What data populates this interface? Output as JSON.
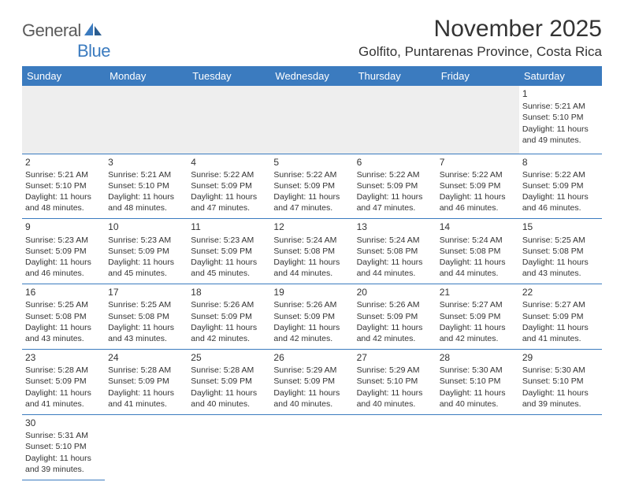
{
  "logo": {
    "text_part1": "General",
    "text_part2": "Blue",
    "text_color": "#5b5b5b",
    "accent_color": "#3b7bbf"
  },
  "header": {
    "month_title": "November 2025",
    "location": "Golfito, Puntarenas Province, Costa Rica"
  },
  "colors": {
    "header_bg": "#3b7bbf",
    "header_text": "#ffffff",
    "cell_border": "#3b7bbf",
    "blank_bg": "#eeeeee",
    "body_text": "#333333"
  },
  "days_of_week": [
    "Sunday",
    "Monday",
    "Tuesday",
    "Wednesday",
    "Thursday",
    "Friday",
    "Saturday"
  ],
  "weeks": [
    [
      {
        "blank": true
      },
      {
        "blank": true
      },
      {
        "blank": true
      },
      {
        "blank": true
      },
      {
        "blank": true
      },
      {
        "blank": true
      },
      {
        "day": "1",
        "sunrise": "Sunrise: 5:21 AM",
        "sunset": "Sunset: 5:10 PM",
        "daylight": "Daylight: 11 hours and 49 minutes."
      }
    ],
    [
      {
        "day": "2",
        "sunrise": "Sunrise: 5:21 AM",
        "sunset": "Sunset: 5:10 PM",
        "daylight": "Daylight: 11 hours and 48 minutes."
      },
      {
        "day": "3",
        "sunrise": "Sunrise: 5:21 AM",
        "sunset": "Sunset: 5:10 PM",
        "daylight": "Daylight: 11 hours and 48 minutes."
      },
      {
        "day": "4",
        "sunrise": "Sunrise: 5:22 AM",
        "sunset": "Sunset: 5:09 PM",
        "daylight": "Daylight: 11 hours and 47 minutes."
      },
      {
        "day": "5",
        "sunrise": "Sunrise: 5:22 AM",
        "sunset": "Sunset: 5:09 PM",
        "daylight": "Daylight: 11 hours and 47 minutes."
      },
      {
        "day": "6",
        "sunrise": "Sunrise: 5:22 AM",
        "sunset": "Sunset: 5:09 PM",
        "daylight": "Daylight: 11 hours and 47 minutes."
      },
      {
        "day": "7",
        "sunrise": "Sunrise: 5:22 AM",
        "sunset": "Sunset: 5:09 PM",
        "daylight": "Daylight: 11 hours and 46 minutes."
      },
      {
        "day": "8",
        "sunrise": "Sunrise: 5:22 AM",
        "sunset": "Sunset: 5:09 PM",
        "daylight": "Daylight: 11 hours and 46 minutes."
      }
    ],
    [
      {
        "day": "9",
        "sunrise": "Sunrise: 5:23 AM",
        "sunset": "Sunset: 5:09 PM",
        "daylight": "Daylight: 11 hours and 46 minutes."
      },
      {
        "day": "10",
        "sunrise": "Sunrise: 5:23 AM",
        "sunset": "Sunset: 5:09 PM",
        "daylight": "Daylight: 11 hours and 45 minutes."
      },
      {
        "day": "11",
        "sunrise": "Sunrise: 5:23 AM",
        "sunset": "Sunset: 5:09 PM",
        "daylight": "Daylight: 11 hours and 45 minutes."
      },
      {
        "day": "12",
        "sunrise": "Sunrise: 5:24 AM",
        "sunset": "Sunset: 5:08 PM",
        "daylight": "Daylight: 11 hours and 44 minutes."
      },
      {
        "day": "13",
        "sunrise": "Sunrise: 5:24 AM",
        "sunset": "Sunset: 5:08 PM",
        "daylight": "Daylight: 11 hours and 44 minutes."
      },
      {
        "day": "14",
        "sunrise": "Sunrise: 5:24 AM",
        "sunset": "Sunset: 5:08 PM",
        "daylight": "Daylight: 11 hours and 44 minutes."
      },
      {
        "day": "15",
        "sunrise": "Sunrise: 5:25 AM",
        "sunset": "Sunset: 5:08 PM",
        "daylight": "Daylight: 11 hours and 43 minutes."
      }
    ],
    [
      {
        "day": "16",
        "sunrise": "Sunrise: 5:25 AM",
        "sunset": "Sunset: 5:08 PM",
        "daylight": "Daylight: 11 hours and 43 minutes."
      },
      {
        "day": "17",
        "sunrise": "Sunrise: 5:25 AM",
        "sunset": "Sunset: 5:08 PM",
        "daylight": "Daylight: 11 hours and 43 minutes."
      },
      {
        "day": "18",
        "sunrise": "Sunrise: 5:26 AM",
        "sunset": "Sunset: 5:09 PM",
        "daylight": "Daylight: 11 hours and 42 minutes."
      },
      {
        "day": "19",
        "sunrise": "Sunrise: 5:26 AM",
        "sunset": "Sunset: 5:09 PM",
        "daylight": "Daylight: 11 hours and 42 minutes."
      },
      {
        "day": "20",
        "sunrise": "Sunrise: 5:26 AM",
        "sunset": "Sunset: 5:09 PM",
        "daylight": "Daylight: 11 hours and 42 minutes."
      },
      {
        "day": "21",
        "sunrise": "Sunrise: 5:27 AM",
        "sunset": "Sunset: 5:09 PM",
        "daylight": "Daylight: 11 hours and 42 minutes."
      },
      {
        "day": "22",
        "sunrise": "Sunrise: 5:27 AM",
        "sunset": "Sunset: 5:09 PM",
        "daylight": "Daylight: 11 hours and 41 minutes."
      }
    ],
    [
      {
        "day": "23",
        "sunrise": "Sunrise: 5:28 AM",
        "sunset": "Sunset: 5:09 PM",
        "daylight": "Daylight: 11 hours and 41 minutes."
      },
      {
        "day": "24",
        "sunrise": "Sunrise: 5:28 AM",
        "sunset": "Sunset: 5:09 PM",
        "daylight": "Daylight: 11 hours and 41 minutes."
      },
      {
        "day": "25",
        "sunrise": "Sunrise: 5:28 AM",
        "sunset": "Sunset: 5:09 PM",
        "daylight": "Daylight: 11 hours and 40 minutes."
      },
      {
        "day": "26",
        "sunrise": "Sunrise: 5:29 AM",
        "sunset": "Sunset: 5:09 PM",
        "daylight": "Daylight: 11 hours and 40 minutes."
      },
      {
        "day": "27",
        "sunrise": "Sunrise: 5:29 AM",
        "sunset": "Sunset: 5:10 PM",
        "daylight": "Daylight: 11 hours and 40 minutes."
      },
      {
        "day": "28",
        "sunrise": "Sunrise: 5:30 AM",
        "sunset": "Sunset: 5:10 PM",
        "daylight": "Daylight: 11 hours and 40 minutes."
      },
      {
        "day": "29",
        "sunrise": "Sunrise: 5:30 AM",
        "sunset": "Sunset: 5:10 PM",
        "daylight": "Daylight: 11 hours and 39 minutes."
      }
    ],
    [
      {
        "day": "30",
        "sunrise": "Sunrise: 5:31 AM",
        "sunset": "Sunset: 5:10 PM",
        "daylight": "Daylight: 11 hours and 39 minutes."
      },
      {
        "trailing_blank": true
      },
      {
        "trailing_blank": true
      },
      {
        "trailing_blank": true
      },
      {
        "trailing_blank": true
      },
      {
        "trailing_blank": true
      },
      {
        "trailing_blank": true
      }
    ]
  ]
}
